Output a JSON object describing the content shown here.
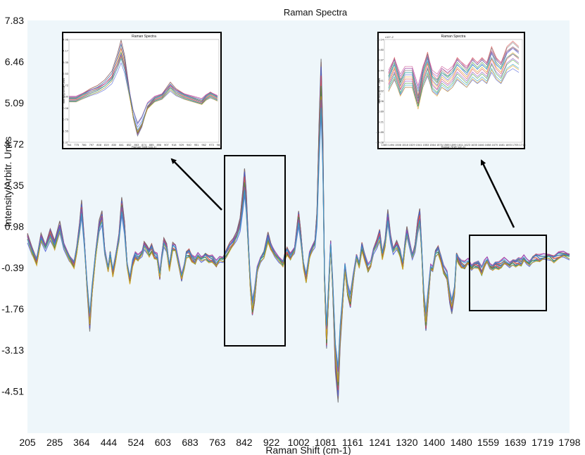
{
  "chart_data": {
    "type": "line",
    "title": "Raman Spectra",
    "xlabel": "Raman Shift (cm-1)",
    "ylabel": "Intensity/Arbitr. Units",
    "xlim": [
      205,
      1798
    ],
    "ylim": [
      -5.9,
      7.83
    ],
    "x_ticks": [
      "205",
      "285",
      "364",
      "444",
      "524",
      "603",
      "683",
      "763",
      "842",
      "922",
      "1002",
      "1081",
      "1161",
      "1241",
      "1320",
      "1400",
      "1480",
      "1559",
      "1639",
      "1719",
      "1798"
    ],
    "y_ticks": [
      "7.83",
      "6.46",
      "5.09",
      "3.72",
      "2.35",
      "0.98",
      "-0.39",
      "-1.76",
      "-3.13",
      "-4.51"
    ],
    "grid": false,
    "background": "#eef6fa",
    "series_colors": [
      "#4a5bd6",
      "#d94848",
      "#3a9a3a",
      "#e0a020",
      "#8a4ac0",
      "#2a9ec8",
      "#c84890",
      "#6d6d6d"
    ],
    "spectrum_shape": [
      [
        205,
        0.65
      ],
      [
        218,
        0.2
      ],
      [
        232,
        -0.2
      ],
      [
        245,
        0.6
      ],
      [
        258,
        0.3
      ],
      [
        272,
        0.75
      ],
      [
        285,
        0.35
      ],
      [
        300,
        0.95
      ],
      [
        312,
        0.35
      ],
      [
        328,
        -0.05
      ],
      [
        342,
        -0.3
      ],
      [
        350,
        0.2
      ],
      [
        358,
        0.9
      ],
      [
        364,
        1.6
      ],
      [
        372,
        0.5
      ],
      [
        380,
        -1.0
      ],
      [
        388,
        -2.25
      ],
      [
        395,
        -1.2
      ],
      [
        405,
        0.0
      ],
      [
        416,
        1.0
      ],
      [
        424,
        1.3
      ],
      [
        432,
        0.2
      ],
      [
        442,
        -0.45
      ],
      [
        448,
        0.05
      ],
      [
        456,
        -0.6
      ],
      [
        464,
        -0.1
      ],
      [
        474,
        0.6
      ],
      [
        482,
        1.7
      ],
      [
        490,
        1.0
      ],
      [
        498,
        -0.3
      ],
      [
        506,
        -0.85
      ],
      [
        514,
        -0.25
      ],
      [
        522,
        0.0
      ],
      [
        530,
        -0.1
      ],
      [
        542,
        0.1
      ],
      [
        548,
        0.4
      ],
      [
        556,
        0.25
      ],
      [
        563,
        0.1
      ],
      [
        570,
        0.25
      ],
      [
        578,
        0.0
      ],
      [
        586,
        -0.05
      ],
      [
        594,
        -0.7
      ],
      [
        600,
        0.0
      ],
      [
        606,
        0.5
      ],
      [
        614,
        0.3
      ],
      [
        622,
        -0.4
      ],
      [
        632,
        0.3
      ],
      [
        640,
        0.25
      ],
      [
        648,
        -0.2
      ],
      [
        658,
        -0.75
      ],
      [
        666,
        -0.35
      ],
      [
        672,
        0.05
      ],
      [
        680,
        0.1
      ],
      [
        688,
        -0.1
      ],
      [
        698,
        -0.2
      ],
      [
        706,
        0.0
      ],
      [
        716,
        -0.1
      ],
      [
        728,
        0.0
      ],
      [
        738,
        -0.1
      ],
      [
        748,
        -0.12
      ],
      [
        760,
        -0.3
      ],
      [
        770,
        -0.1
      ],
      [
        780,
        -0.1
      ],
      [
        790,
        0.1
      ],
      [
        800,
        0.3
      ],
      [
        810,
        0.45
      ],
      [
        820,
        0.7
      ],
      [
        830,
        1.1
      ],
      [
        838,
        1.9
      ],
      [
        843,
        2.5
      ],
      [
        848,
        1.8
      ],
      [
        854,
        0.4
      ],
      [
        860,
        -1.0
      ],
      [
        866,
        -1.8
      ],
      [
        872,
        -1.4
      ],
      [
        880,
        -0.5
      ],
      [
        890,
        -0.1
      ],
      [
        900,
        0.05
      ],
      [
        912,
        0.6
      ],
      [
        920,
        0.3
      ],
      [
        932,
        0.05
      ],
      [
        944,
        -0.1
      ],
      [
        956,
        -0.25
      ],
      [
        962,
        0.0
      ],
      [
        968,
        0.15
      ],
      [
        978,
        -0.05
      ],
      [
        990,
        0.2
      ],
      [
        1002,
        1.3
      ],
      [
        1008,
        0.7
      ],
      [
        1016,
        -0.3
      ],
      [
        1024,
        -0.8
      ],
      [
        1034,
        0.0
      ],
      [
        1044,
        0.3
      ],
      [
        1050,
        0.45
      ],
      [
        1056,
        1.3
      ],
      [
        1062,
        3.8
      ],
      [
        1068,
        5.7
      ],
      [
        1073,
        3.5
      ],
      [
        1078,
        -0.8
      ],
      [
        1084,
        -2.8
      ],
      [
        1090,
        -1.2
      ],
      [
        1096,
        0.4
      ],
      [
        1102,
        -1.0
      ],
      [
        1110,
        -3.4
      ],
      [
        1118,
        -4.3
      ],
      [
        1124,
        -2.7
      ],
      [
        1130,
        -1.8
      ],
      [
        1138,
        -0.4
      ],
      [
        1146,
        -1.2
      ],
      [
        1154,
        -1.55
      ],
      [
        1162,
        -0.8
      ],
      [
        1172,
        0.0
      ],
      [
        1180,
        -0.3
      ],
      [
        1188,
        0.3
      ],
      [
        1196,
        -0.05
      ],
      [
        1206,
        -0.45
      ],
      [
        1214,
        -0.3
      ],
      [
        1222,
        0.2
      ],
      [
        1232,
        0.45
      ],
      [
        1240,
        0.7
      ],
      [
        1248,
        0.0
      ],
      [
        1256,
        0.4
      ],
      [
        1264,
        1.3
      ],
      [
        1272,
        0.6
      ],
      [
        1280,
        0.2
      ],
      [
        1290,
        0.4
      ],
      [
        1300,
        0.1
      ],
      [
        1308,
        -0.35
      ],
      [
        1314,
        0.3
      ],
      [
        1320,
        0.8
      ],
      [
        1328,
        0.4
      ],
      [
        1336,
        0.0
      ],
      [
        1344,
        0.3
      ],
      [
        1352,
        1.0
      ],
      [
        1358,
        1.3
      ],
      [
        1364,
        0.1
      ],
      [
        1370,
        -1.5
      ],
      [
        1376,
        -2.25
      ],
      [
        1384,
        -1.2
      ],
      [
        1390,
        -0.4
      ],
      [
        1396,
        -0.45
      ],
      [
        1404,
        0.1
      ],
      [
        1412,
        0.2
      ],
      [
        1420,
        -0.1
      ],
      [
        1428,
        -0.5
      ],
      [
        1438,
        -0.7
      ],
      [
        1446,
        -1.4
      ],
      [
        1452,
        -1.7
      ],
      [
        1460,
        -1.2
      ],
      [
        1466,
        0.0
      ],
      [
        1472,
        -0.15
      ],
      [
        1480,
        -0.3
      ],
      [
        1490,
        -0.35
      ],
      [
        1500,
        -0.2
      ],
      [
        1510,
        -0.4
      ],
      [
        1518,
        -0.3
      ],
      [
        1530,
        -0.3
      ],
      [
        1540,
        -0.55
      ],
      [
        1548,
        -0.3
      ],
      [
        1556,
        -0.15
      ],
      [
        1564,
        -0.35
      ],
      [
        1572,
        -0.4
      ],
      [
        1580,
        -0.3
      ],
      [
        1590,
        -0.35
      ],
      [
        1598,
        -0.3
      ],
      [
        1606,
        -0.2
      ],
      [
        1614,
        -0.25
      ],
      [
        1622,
        -0.3
      ],
      [
        1632,
        -0.2
      ],
      [
        1640,
        -0.25
      ],
      [
        1648,
        -0.2
      ],
      [
        1656,
        -0.25
      ],
      [
        1664,
        -0.1
      ],
      [
        1672,
        -0.2
      ],
      [
        1680,
        -0.25
      ],
      [
        1690,
        -0.1
      ],
      [
        1700,
        -0.05
      ],
      [
        1710,
        -0.1
      ],
      [
        1722,
        -0.05
      ],
      [
        1738,
        0.0
      ],
      [
        1752,
        -0.1
      ],
      [
        1766,
        0.0
      ],
      [
        1780,
        0.05
      ],
      [
        1798,
        0.0
      ]
    ],
    "annotations": [
      {
        "label": "inset-left",
        "x_range": [
          800,
          927
        ],
        "y_range": [
          -3.13,
          3.1
        ]
      },
      {
        "label": "inset-right",
        "x_range": [
          1480,
          1640
        ],
        "y_range": [
          -1.9,
          0.5
        ]
      }
    ]
  },
  "insets": [
    {
      "title": "Raman Spectra",
      "x_ticks": [
        "764",
        "775",
        "786",
        "797",
        "808",
        "819",
        "830",
        "841",
        "852",
        "863",
        "874",
        "885",
        "896",
        "907",
        "918",
        "929",
        "940",
        "951",
        "962",
        "973",
        "984"
      ],
      "y_ticks": [
        "4.98",
        "4.17",
        "3.35",
        "2.53",
        "1.72",
        "0.90",
        "0.08",
        "-0.73",
        "-1.55",
        "-2.37"
      ],
      "ylabel": "Intensity/Arbitr. Units",
      "xlabel": "Raman Shift (cm-1)"
    },
    {
      "title": "Raman Spectra",
      "x_ticks": [
        "1483",
        "1494",
        "1506",
        "1518",
        "1529",
        "1541",
        "1553",
        "1564",
        "1576",
        "1588",
        "1599",
        "1611",
        "1623",
        "1635",
        "1646",
        "1658",
        "1670",
        "1681",
        "1693",
        "1705",
        "1716"
      ],
      "y_ticks": [
        "10.14",
        "9.80",
        "5.97",
        "3.44",
        "0.91",
        "-1.62",
        "-4.06",
        "-6.89",
        "-9.21",
        "-11.85",
        "-14.08"
      ],
      "ylabel": "Intensity/Arbitr. Units",
      "xlabel": "Raman Shift (cm-1)",
      "corner_label": "x10^-2"
    }
  ]
}
